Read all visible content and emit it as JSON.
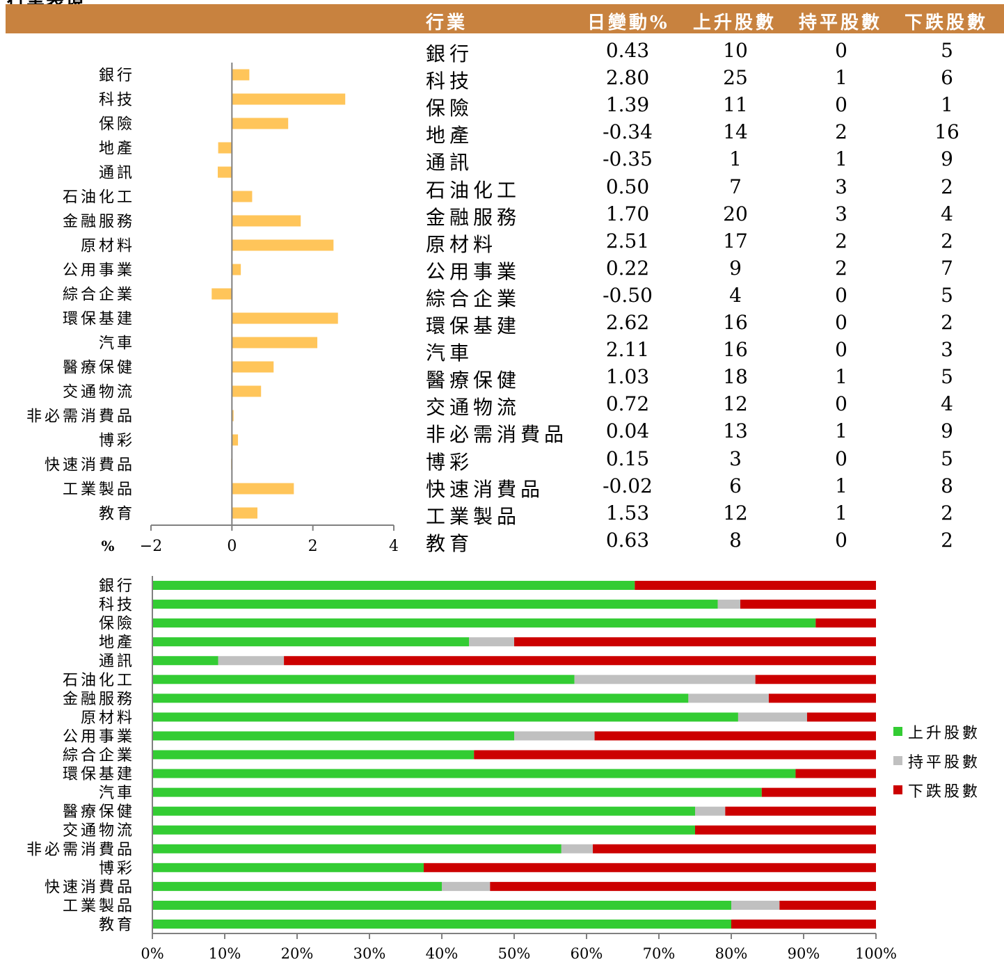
{
  "page_title": "行業表現",
  "table": {
    "headers": [
      "行業",
      "日變動%",
      "上升股數",
      "持平股數",
      "下跌股數"
    ],
    "rows": [
      {
        "name": "銀行",
        "change": "0.43",
        "up": "10",
        "flat": "0",
        "down": "5"
      },
      {
        "name": "科技",
        "change": "2.80",
        "up": "25",
        "flat": "1",
        "down": "6"
      },
      {
        "name": "保險",
        "change": "1.39",
        "up": "11",
        "flat": "0",
        "down": "1"
      },
      {
        "name": "地產",
        "change": "-0.34",
        "up": "14",
        "flat": "2",
        "down": "16"
      },
      {
        "name": "通訊",
        "change": "-0.35",
        "up": "1",
        "flat": "1",
        "down": "9"
      },
      {
        "name": "石油化工",
        "change": "0.50",
        "up": "7",
        "flat": "3",
        "down": "2"
      },
      {
        "name": "金融服務",
        "change": "1.70",
        "up": "20",
        "flat": "3",
        "down": "4"
      },
      {
        "name": "原材料",
        "change": "2.51",
        "up": "17",
        "flat": "2",
        "down": "2"
      },
      {
        "name": "公用事業",
        "change": "0.22",
        "up": "9",
        "flat": "2",
        "down": "7"
      },
      {
        "name": "綜合企業",
        "change": "-0.50",
        "up": "4",
        "flat": "0",
        "down": "5"
      },
      {
        "name": "環保基建",
        "change": "2.62",
        "up": "16",
        "flat": "0",
        "down": "2"
      },
      {
        "name": "汽車",
        "change": "2.11",
        "up": "16",
        "flat": "0",
        "down": "3"
      },
      {
        "name": "醫療保健",
        "change": "1.03",
        "up": "18",
        "flat": "1",
        "down": "5"
      },
      {
        "name": "交通物流",
        "change": "0.72",
        "up": "12",
        "flat": "0",
        "down": "4"
      },
      {
        "name": "非必需消費品",
        "change": "0.04",
        "up": "13",
        "flat": "1",
        "down": "9"
      },
      {
        "name": "博彩",
        "change": "0.15",
        "up": "3",
        "flat": "0",
        "down": "5"
      },
      {
        "name": "快速消費品",
        "change": "-0.02",
        "up": "6",
        "flat": "1",
        "down": "8"
      },
      {
        "name": "工業製品",
        "change": "1.53",
        "up": "12",
        "flat": "1",
        "down": "2"
      },
      {
        "name": "教育",
        "change": "0.63",
        "up": "8",
        "flat": "0",
        "down": "2"
      }
    ]
  },
  "colors": {
    "header": "#C8823F",
    "bar": "#FFC55A",
    "axis": "#808080",
    "up": "#33CC33",
    "flat": "#C0C0C0",
    "down": "#CC0000"
  },
  "chart_data": [
    {
      "type": "bar",
      "orientation": "horizontal",
      "categories": [
        "銀行",
        "科技",
        "保險",
        "地產",
        "通訊",
        "石油化工",
        "金融服務",
        "原材料",
        "公用事業",
        "綜合企業",
        "環保基建",
        "汽車",
        "醫療保健",
        "交通物流",
        "非必需消費品",
        "博彩",
        "快速消費品",
        "工業製品",
        "教育"
      ],
      "values": [
        0.43,
        2.8,
        1.39,
        -0.34,
        -0.35,
        0.5,
        1.7,
        2.51,
        0.22,
        -0.5,
        2.62,
        2.11,
        1.03,
        0.72,
        0.04,
        0.15,
        -0.02,
        1.53,
        0.63
      ],
      "xlim": [
        -2,
        4
      ],
      "xticks": [
        "−2",
        "0",
        "2",
        "4"
      ],
      "xlabel": "%",
      "grid": false
    },
    {
      "type": "bar",
      "orientation": "horizontal",
      "stacked": "percent",
      "categories": [
        "銀行",
        "科技",
        "保險",
        "地產",
        "通訊",
        "石油化工",
        "金融服務",
        "原材料",
        "公用事業",
        "綜合企業",
        "環保基建",
        "汽車",
        "醫療保健",
        "交通物流",
        "非必需消費品",
        "博彩",
        "快速消費品",
        "工業製品",
        "教育"
      ],
      "series": [
        {
          "name": "上升股數",
          "values": [
            10,
            25,
            11,
            14,
            1,
            7,
            20,
            17,
            9,
            4,
            16,
            16,
            18,
            12,
            13,
            3,
            6,
            12,
            8
          ]
        },
        {
          "name": "持平股數",
          "values": [
            0,
            1,
            0,
            2,
            1,
            3,
            3,
            2,
            2,
            0,
            0,
            0,
            1,
            0,
            1,
            0,
            1,
            1,
            0
          ]
        },
        {
          "name": "下跌股數",
          "values": [
            5,
            6,
            1,
            16,
            9,
            2,
            4,
            2,
            7,
            5,
            2,
            3,
            5,
            4,
            9,
            5,
            8,
            2,
            2
          ]
        }
      ],
      "xticks": [
        "0%",
        "10%",
        "20%",
        "30%",
        "40%",
        "50%",
        "60%",
        "70%",
        "80%",
        "90%",
        "100%"
      ],
      "xlim": [
        0,
        100
      ],
      "legend": "right",
      "grid": false
    }
  ]
}
